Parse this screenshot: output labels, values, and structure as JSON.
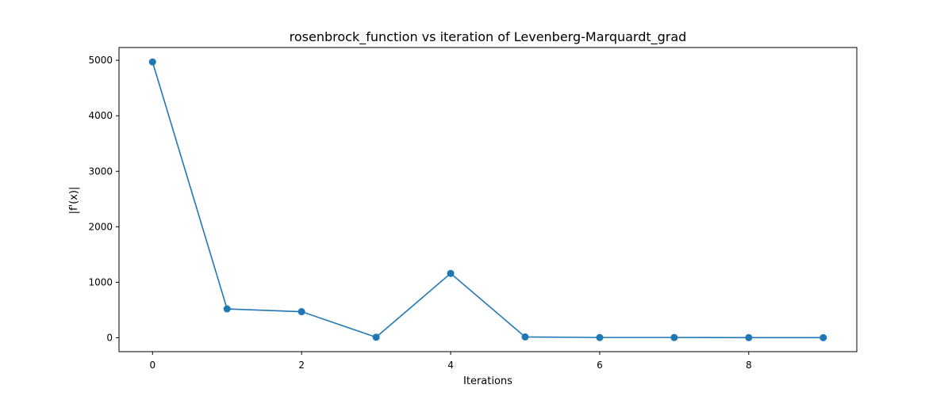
{
  "chart_data": {
    "type": "line",
    "title": "rosenbrock_function vs iteration of Levenberg-Marquardt_grad",
    "xlabel": "Iterations",
    "ylabel": "|f'(x)|",
    "x": [
      0,
      1,
      2,
      3,
      4,
      5,
      6,
      7,
      8,
      9
    ],
    "series": [
      {
        "values": [
          4970,
          520,
          470,
          10,
          1160,
          15,
          5,
          5,
          3,
          2
        ]
      }
    ],
    "xlim": [
      -0.45,
      9.45
    ],
    "ylim": [
      -250,
      5230
    ],
    "xticks": [
      0,
      2,
      4,
      6,
      8
    ],
    "yticks": [
      0,
      1000,
      2000,
      3000,
      4000,
      5000
    ],
    "grid": false,
    "colors": {
      "series": "#1f77b4",
      "axes": "#000000"
    }
  }
}
